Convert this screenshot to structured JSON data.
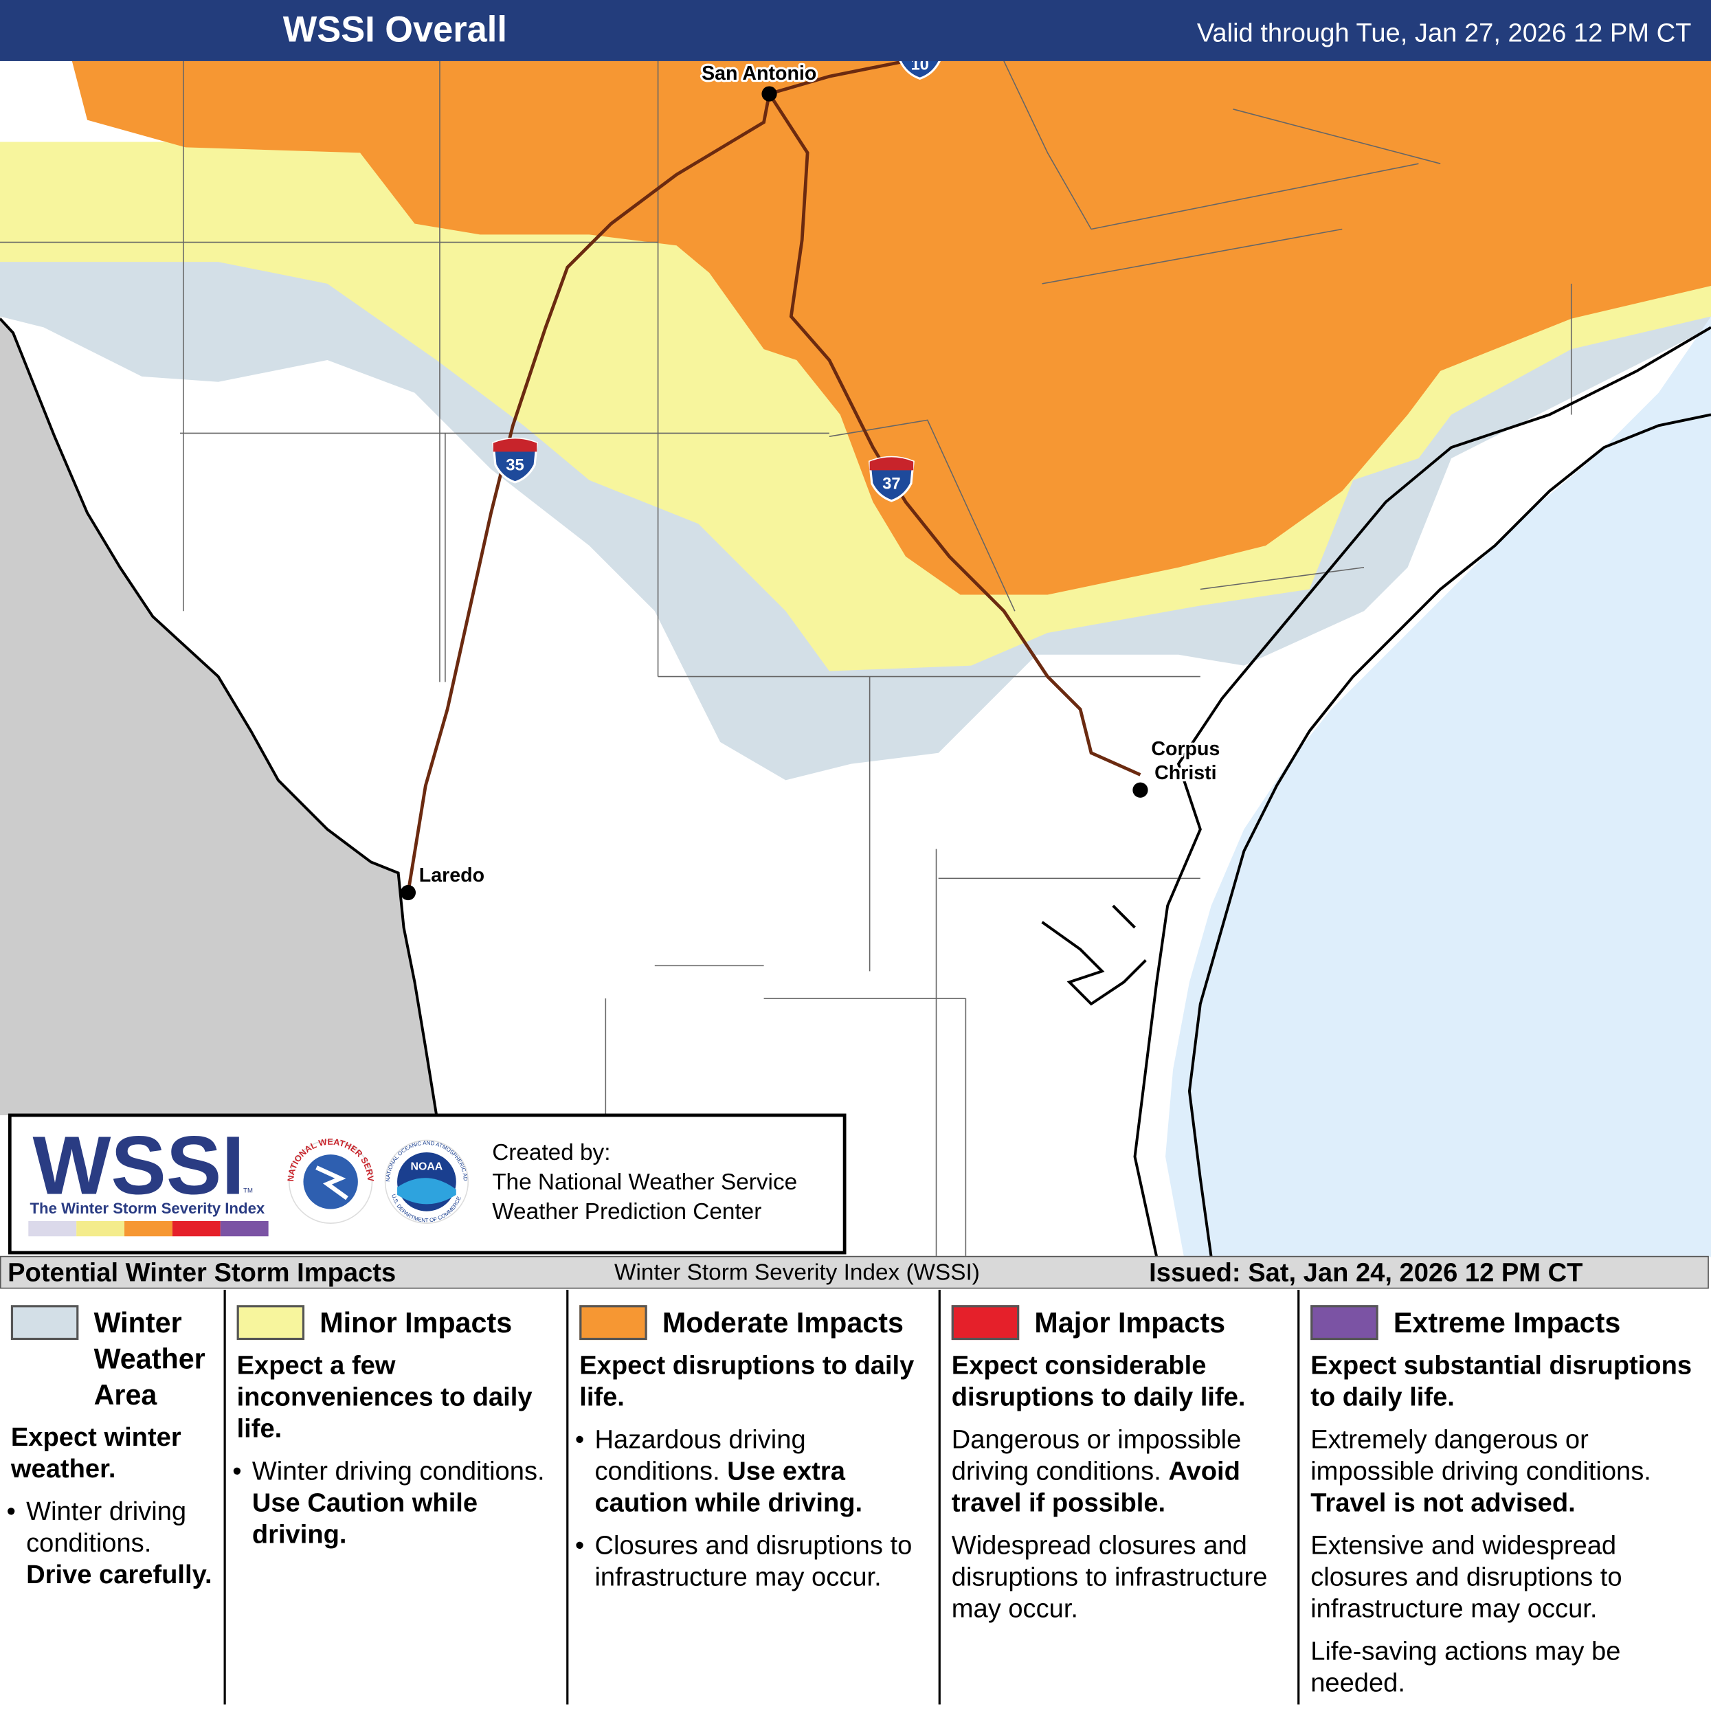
{
  "header": {
    "title": "WSSI Overall",
    "valid": "Valid through Tue, Jan 27, 2026 12 PM CT"
  },
  "map": {
    "cities": [
      {
        "name": "San Antonio"
      },
      {
        "name": "Corpus",
        "name2": "Christi"
      },
      {
        "name": "Laredo"
      }
    ],
    "shields": [
      "35",
      "37",
      "10"
    ]
  },
  "logo": {
    "wordmark": "WSSI",
    "tm": "TM",
    "tagline": "The Winter Storm Severity Index",
    "nws": "NATIONAL WEATHER SERVICE",
    "noaa": "NOAA",
    "noaa_ring": "NATIONAL OCEANIC AND ATMOSPHERIC ADMINISTRATION",
    "doc": "U.S. DEPARTMENT OF COMMERCE",
    "credits": [
      "Created by:",
      "The National Weather Service",
      "Weather Prediction Center"
    ]
  },
  "footer": {
    "left": "Potential Winter Storm Impacts",
    "center": "Winter Storm Severity Index (WSSI)",
    "right": "Issued: Sat, Jan 24, 2026 12 PM CT"
  },
  "legend": {
    "columns": [
      {
        "name": "Winter Weather Area",
        "color": "#d3dfe7",
        "heading": "Expect winter weather.",
        "paragraphs": [
          {
            "bullet": true,
            "runs": [
              {
                "text": "Winter driving conditions."
              },
              {
                "text": "Drive carefully.",
                "bold": true
              }
            ]
          }
        ]
      },
      {
        "name": "Minor Impacts",
        "color": "#f7f59d",
        "heading": "Expect a few inconveniences to daily life.",
        "paragraphs": [
          {
            "bullet": true,
            "runs": [
              {
                "text": "Winter driving conditions."
              },
              {
                "text": "Use Caution while driving.",
                "bold": true
              }
            ]
          }
        ]
      },
      {
        "name": "Moderate Impacts",
        "color": "#f69733",
        "heading": "Expect disruptions to daily life.",
        "paragraphs": [
          {
            "bullet": true,
            "runs": [
              {
                "text": "Hazardous driving conditions."
              },
              {
                "text": "Use extra caution while driving.",
                "bold": true
              }
            ]
          },
          {
            "bullet": true,
            "runs": [
              {
                "text": "Closures and disruptions to infrastructure may occur."
              }
            ]
          }
        ]
      },
      {
        "name": "Major Impacts",
        "color": "#e5202a",
        "heading": "Expect considerable disruptions to daily life.",
        "paragraphs": [
          {
            "bullet": false,
            "runs": [
              {
                "text": "Dangerous or impossible driving conditions."
              },
              {
                "text": "Avoid travel if possible.",
                "bold": true
              }
            ]
          },
          {
            "bullet": false,
            "runs": [
              {
                "text": "Widespread closures and disruptions to infrastructure may occur."
              }
            ]
          }
        ]
      },
      {
        "name": "Extreme Impacts",
        "color": "#7b53a4",
        "heading": "Expect substantial disruptions to daily life.",
        "paragraphs": [
          {
            "bullet": false,
            "runs": [
              {
                "text": "Extremely dangerous or impossible driving conditions."
              },
              {
                "text": "Travel is not advised.",
                "bold": true
              }
            ]
          },
          {
            "bullet": false,
            "runs": [
              {
                "text": "Extensive and widespread closures and disruptions to infrastructure may occur."
              }
            ]
          },
          {
            "bullet": false,
            "runs": [
              {
                "text": "Life-saving actions may be needed."
              }
            ]
          }
        ]
      }
    ]
  }
}
